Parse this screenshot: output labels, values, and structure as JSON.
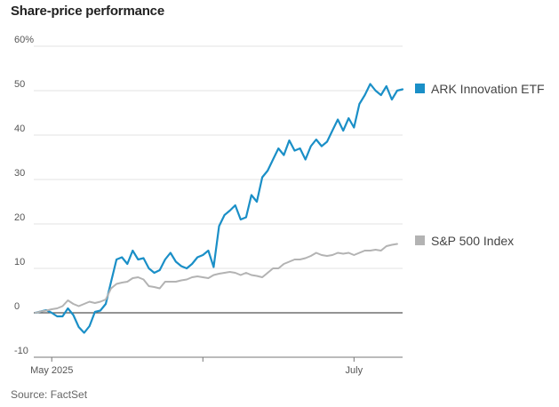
{
  "header": {
    "title": "Share-price performance"
  },
  "footer": {
    "source": "Source: FactSet"
  },
  "chart_data": {
    "type": "line",
    "title": "Share-price performance",
    "xlabel": "",
    "ylabel": "",
    "ylim": [
      -10,
      60
    ],
    "y_ticks": [
      "60%",
      "50",
      "40",
      "30",
      "20",
      "10",
      "0",
      "-10"
    ],
    "y_tick_values": [
      60,
      50,
      40,
      30,
      20,
      10,
      0,
      -10
    ],
    "x_ticks": [
      {
        "label": "May 2025",
        "index": 3
      },
      {
        "label": "",
        "index": 31
      },
      {
        "label": "July",
        "index": 59
      }
    ],
    "grid": true,
    "legend": "right, at line ends",
    "x_index": [
      0,
      1,
      2,
      3,
      4,
      5,
      6,
      7,
      8,
      9,
      10,
      11,
      12,
      13,
      14,
      15,
      16,
      17,
      18,
      19,
      20,
      21,
      22,
      23,
      24,
      25,
      26,
      27,
      28,
      29,
      30,
      31,
      32,
      33,
      34,
      35,
      36,
      37,
      38,
      39,
      40,
      41,
      42,
      43,
      44,
      45,
      46,
      47,
      48,
      49,
      50,
      51,
      52,
      53,
      54,
      55,
      56,
      57,
      58,
      59,
      60,
      61,
      62,
      63,
      64,
      65,
      66,
      67,
      68,
      69,
      70,
      71,
      72,
      73,
      74,
      75,
      76,
      77,
      78,
      79,
      80,
      81,
      82,
      83,
      84
    ],
    "series": [
      {
        "name": "ARK Innovation ETF",
        "color": "#1a8fc7",
        "values": [
          0,
          0.3,
          0.6,
          0,
          -0.8,
          -0.8,
          1.0,
          -0.5,
          -3.2,
          -4.5,
          -3.0,
          0.2,
          0.5,
          2.0,
          7.0,
          12.0,
          12.5,
          11.0,
          14.0,
          12.0,
          12.3,
          10.0,
          9.0,
          9.6,
          12.0,
          13.5,
          11.5,
          10.5,
          10.0,
          11.0,
          12.5,
          13.0,
          14.0,
          10.3,
          19.5,
          22.0,
          23.0,
          24.2,
          21.0,
          21.5,
          26.5,
          25.0,
          30.5,
          32.0,
          34.5,
          37.0,
          35.5,
          38.8,
          36.5,
          37.0,
          34.5,
          37.5,
          39.0,
          37.5,
          38.5,
          41.0,
          43.5,
          41.0,
          43.8,
          41.7,
          47.0,
          49.0,
          51.5,
          50.0,
          49.0,
          51.0,
          48.0,
          50.0,
          50.3,
          null,
          null,
          null,
          null,
          null,
          null,
          null,
          null,
          null,
          null,
          null,
          null,
          null,
          null,
          null,
          null
        ]
      },
      {
        "name": "S&P 500 Index",
        "color": "#b3b3b3",
        "values": [
          0,
          0.3,
          0.5,
          0.8,
          1.0,
          1.5,
          2.8,
          2.0,
          1.5,
          2.0,
          2.5,
          2.2,
          2.5,
          3.0,
          5.5,
          6.5,
          6.8,
          7.0,
          7.8,
          8.0,
          7.5,
          6.0,
          5.8,
          5.5,
          7.0,
          7.0,
          7.0,
          7.3,
          7.5,
          8.0,
          8.2,
          8.0,
          7.8,
          8.5,
          8.8,
          9.0,
          9.2,
          9.0,
          8.5,
          9.0,
          8.5,
          8.3,
          8.0,
          9.0,
          10.0,
          10.0,
          11.0,
          11.5,
          12.0,
          12.0,
          12.3,
          12.8,
          13.5,
          13.0,
          12.8,
          13.0,
          13.5,
          13.3,
          13.5,
          13.0,
          13.5,
          14.0,
          14.0,
          14.2,
          14.0,
          15.0,
          15.3,
          15.5,
          null,
          null,
          null,
          null,
          null,
          null,
          null,
          null,
          null,
          null,
          null,
          null,
          null,
          null,
          null,
          null,
          null
        ]
      }
    ]
  }
}
